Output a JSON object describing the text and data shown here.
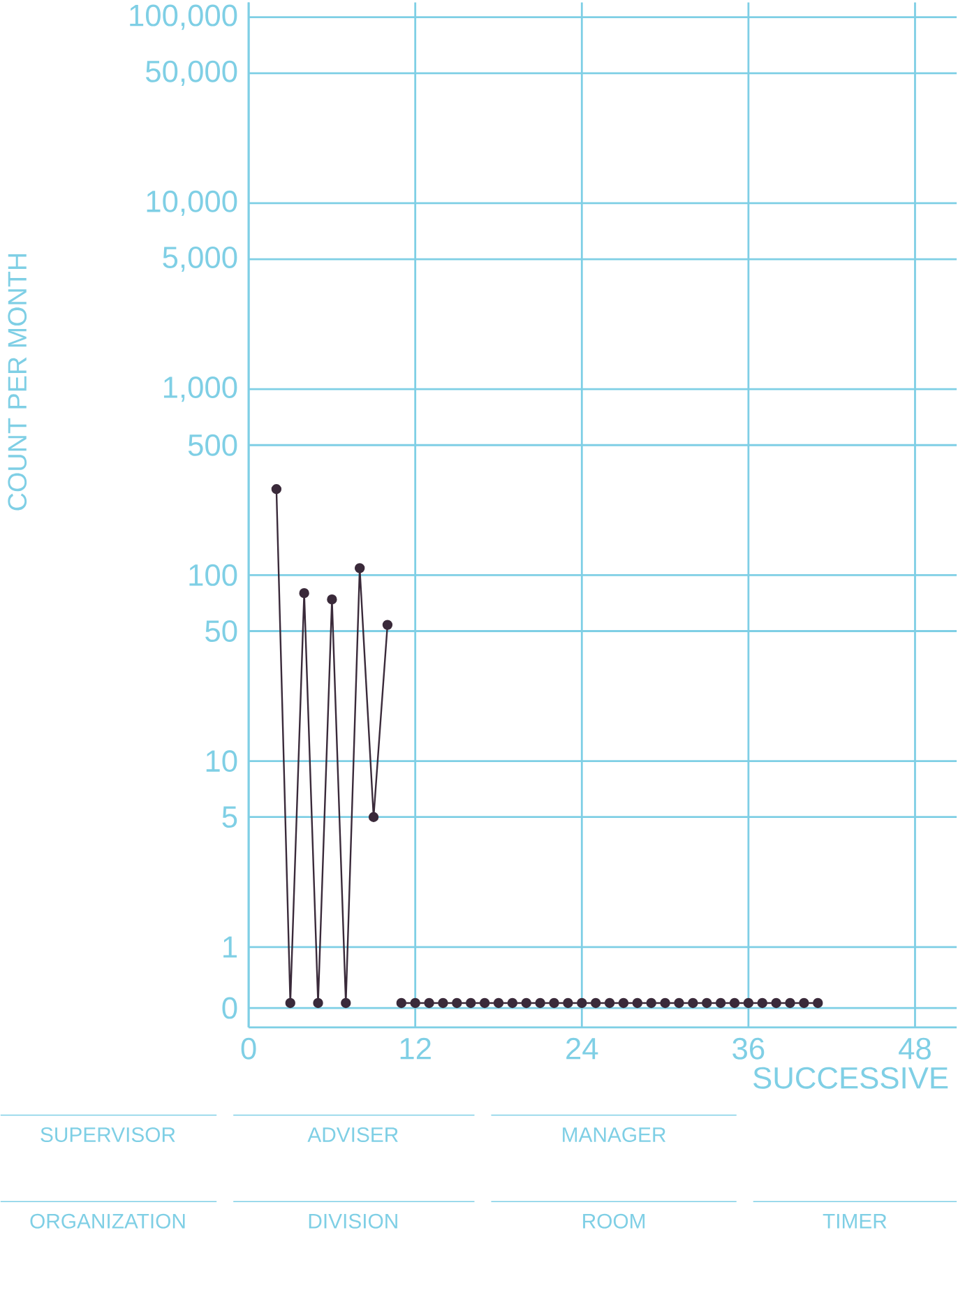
{
  "chart_data": {
    "type": "line",
    "xlabel": "SUCCESSIVE",
    "ylabel": "COUNT PER MONTH",
    "log": "y",
    "grid": true,
    "marker": "circle",
    "line_style": "solid",
    "xlim": [
      0,
      51
    ],
    "ylim": [
      0.37,
      120000
    ],
    "xticks": [
      0,
      12,
      24,
      36,
      48
    ],
    "yticks": [
      {
        "value": 0.47,
        "label": "0"
      },
      1,
      5,
      10,
      50,
      100,
      500,
      {
        "value": 1000,
        "label": "1,000"
      },
      {
        "value": 5000,
        "label": "5,000"
      },
      {
        "value": 10000,
        "label": "10,000"
      },
      {
        "value": 50000,
        "label": "50,000"
      },
      {
        "value": 100000,
        "label": "100,000"
      }
    ],
    "series": [
      {
        "color": "#3a2a3a",
        "x": [
          2,
          3,
          4,
          5,
          6,
          7,
          8,
          9,
          10
        ],
        "values": [
          290,
          0.5,
          80,
          0.5,
          74,
          0.5,
          109,
          5,
          54
        ]
      },
      {
        "color": "#3a2a3a",
        "x": [
          11,
          12,
          13,
          14,
          15,
          16,
          17,
          18,
          19,
          20,
          21,
          22,
          23,
          24,
          25,
          26,
          27,
          28,
          29,
          30,
          31,
          32,
          33,
          34,
          35,
          36,
          37,
          38,
          39,
          40,
          41
        ],
        "values": [
          0.5,
          0.5,
          0.5,
          0.5,
          0.5,
          0.5,
          0.5,
          0.5,
          0.5,
          0.5,
          0.5,
          0.5,
          0.5,
          0.5,
          0.5,
          0.5,
          0.5,
          0.5,
          0.5,
          0.5,
          0.5,
          0.5,
          0.5,
          0.5,
          0.5,
          0.5,
          0.5,
          0.5,
          0.5,
          0.5,
          0.5
        ]
      }
    ],
    "annotations": [
      "SUPERVISOR",
      "ADVISER",
      "MANAGER",
      "ORGANIZATION",
      "DIVISION",
      "ROOM",
      "TIMER"
    ]
  }
}
